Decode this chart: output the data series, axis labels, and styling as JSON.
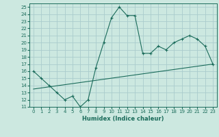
{
  "title": "",
  "xlabel": "Humidex (Indice chaleur)",
  "bg_color": "#cce8e0",
  "grid_color": "#aacccc",
  "line_color": "#1a6b5a",
  "xlim": [
    -0.5,
    23.5
  ],
  "ylim": [
    11,
    25.5
  ],
  "yticks": [
    11,
    12,
    13,
    14,
    15,
    16,
    17,
    18,
    19,
    20,
    21,
    22,
    23,
    24,
    25
  ],
  "xticks": [
    0,
    1,
    2,
    3,
    4,
    5,
    6,
    7,
    8,
    9,
    10,
    11,
    12,
    13,
    14,
    15,
    16,
    17,
    18,
    19,
    20,
    21,
    22,
    23
  ],
  "line1_x": [
    0,
    1,
    2,
    3,
    4,
    5,
    6,
    7,
    8,
    9,
    10,
    11,
    12,
    13,
    14,
    15,
    16,
    17,
    18,
    19,
    20,
    21,
    22,
    23
  ],
  "line1_y": [
    16.0,
    15.0,
    14.0,
    13.0,
    12.0,
    12.5,
    11.0,
    12.0,
    16.5,
    20.0,
    23.5,
    25.0,
    23.8,
    23.8,
    18.5,
    18.5,
    19.5,
    19.0,
    20.0,
    20.5,
    21.0,
    20.5,
    19.5,
    17.0
  ],
  "line2_x": [
    0,
    23
  ],
  "line2_y": [
    13.5,
    17.0
  ]
}
